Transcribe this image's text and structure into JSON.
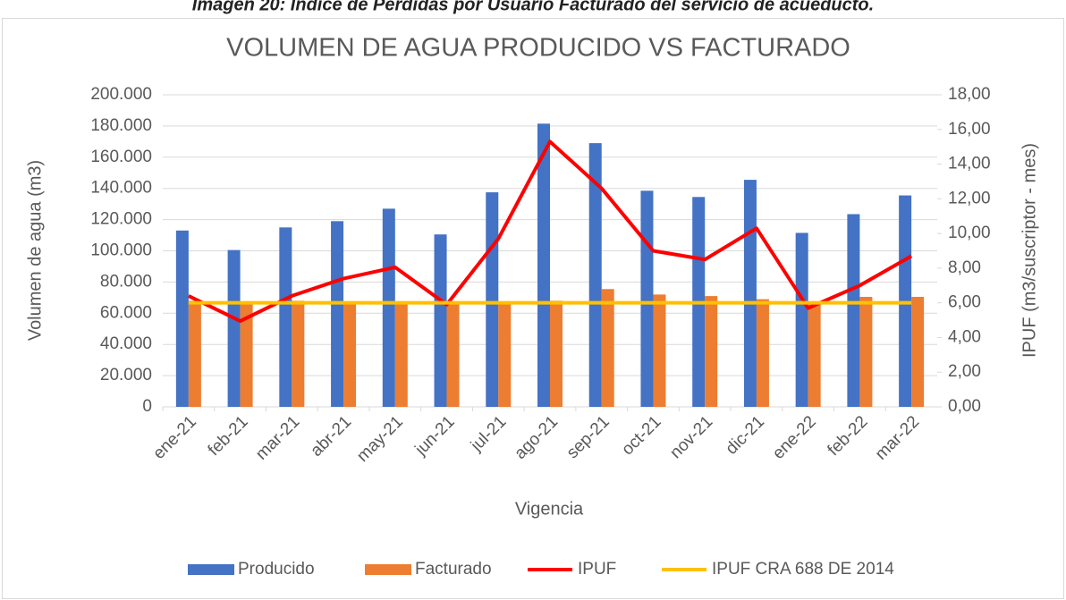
{
  "chart_data": {
    "type": "bar_line",
    "caption": "Imagen 20: Índice de Pérdidas por Usuario Facturado del servicio de acueducto.",
    "title": "VOLUMEN DE AGUA PRODUCIDO VS FACTURADO",
    "x_label": "Vigencia",
    "y_label": "Volumen de agua (m3)",
    "y2_label": "IPUF (m3/suscriptor - mes)",
    "categories": [
      "ene-21",
      "feb-21",
      "mar-21",
      "abr-21",
      "may-21",
      "jun-21",
      "jul-21",
      "ago-21",
      "sep-21",
      "oct-21",
      "nov-21",
      "dic-21",
      "ene-22",
      "feb-22",
      "mar-22"
    ],
    "series": [
      {
        "name": "Producido",
        "type": "bar",
        "color": "#4472c4",
        "values": [
          113000,
          100500,
          115000,
          119000,
          127000,
          110500,
          137500,
          181500,
          169000,
          138500,
          134500,
          145500,
          111500,
          123500,
          135500
        ]
      },
      {
        "name": "Facturado",
        "type": "bar",
        "color": "#ed7d31",
        "values": [
          68000,
          66000,
          68000,
          67000,
          67000,
          66000,
          67000,
          68000,
          75500,
          72000,
          71000,
          69000,
          66000,
          70500,
          70500
        ]
      },
      {
        "name": "IPUF",
        "type": "line",
        "axis": "y2",
        "color": "#ff0000",
        "values": [
          6.4,
          4.95,
          6.4,
          7.4,
          8.05,
          5.9,
          9.7,
          15.3,
          12.6,
          9.0,
          8.5,
          10.3,
          5.7,
          7.0,
          8.7
        ]
      },
      {
        "name": "IPUF CRA 688 DE 2014",
        "type": "line",
        "axis": "y2",
        "color": "#ffc000",
        "values": [
          6,
          6,
          6,
          6,
          6,
          6,
          6,
          6,
          6,
          6,
          6,
          6,
          6,
          6,
          6
        ]
      }
    ],
    "ylim": [
      0,
      200000
    ],
    "yticks": [
      0,
      {
        "value": 20000,
        "label": "20.000"
      },
      {
        "value": 40000,
        "label": "40.000"
      },
      {
        "value": 60000,
        "label": "60.000"
      },
      {
        "value": 80000,
        "label": "80.000"
      },
      {
        "value": 100000,
        "label": "100.000"
      },
      {
        "value": 120000,
        "label": "120.000"
      },
      {
        "value": 140000,
        "label": "140.000"
      },
      {
        "value": 160000,
        "label": "160.000"
      },
      {
        "value": 180000,
        "label": "180.000"
      },
      {
        "value": 200000,
        "label": "200.000"
      }
    ],
    "y2lim": [
      0,
      18
    ],
    "y2ticks": [
      {
        "value": 0,
        "label": "0,00"
      },
      {
        "value": 2,
        "label": "2,00"
      },
      {
        "value": 4,
        "label": "4,00"
      },
      {
        "value": 6,
        "label": "6,00"
      },
      {
        "value": 8,
        "label": "8,00"
      },
      {
        "value": 10,
        "label": "10,00"
      },
      {
        "value": 12,
        "label": "12,00"
      },
      {
        "value": 14,
        "label": "14,00"
      },
      {
        "value": 16,
        "label": "16,00"
      },
      {
        "value": 18,
        "label": "18,00"
      }
    ],
    "grid": true,
    "legend": "bottom"
  }
}
